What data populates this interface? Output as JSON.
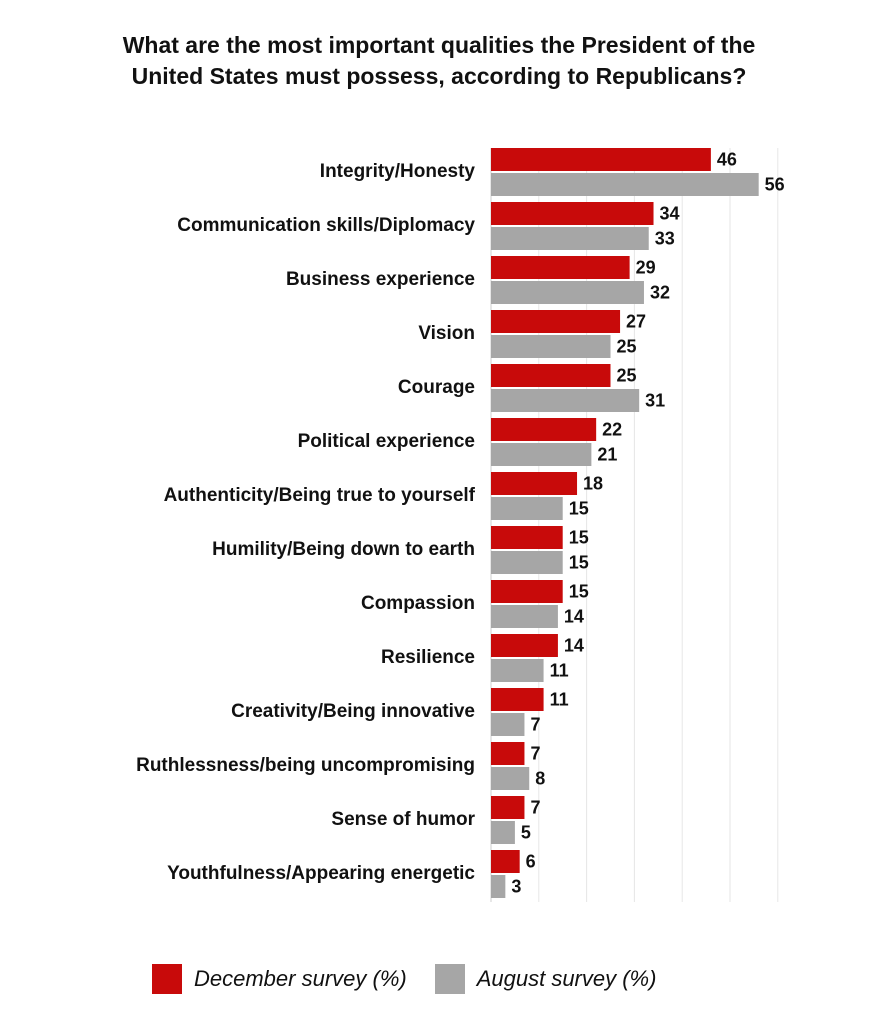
{
  "chart_data": {
    "type": "bar",
    "orientation": "horizontal",
    "title_lines": [
      "What are the most important qualities the President of the",
      "United States must possess, according to Republicans?"
    ],
    "categories": [
      "Integrity/Honesty",
      "Communication skills/Diplomacy",
      "Business experience",
      "Vision",
      "Courage",
      "Political experience",
      "Authenticity/Being true to yourself",
      "Humility/Being down to earth",
      "Compassion",
      "Resilience",
      "Creativity/Being innovative",
      "Ruthlessness/being uncompromising",
      "Sense of humor",
      "Youthfulness/Appearing energetic"
    ],
    "series": [
      {
        "name": "December survey (%)",
        "color": "#c80a0a",
        "values": [
          46,
          34,
          29,
          27,
          25,
          22,
          18,
          15,
          15,
          14,
          11,
          7,
          7,
          6
        ]
      },
      {
        "name": "August survey (%)",
        "color": "#a6a6a6",
        "values": [
          56,
          33,
          32,
          25,
          31,
          21,
          15,
          15,
          14,
          11,
          7,
          8,
          5,
          3
        ]
      }
    ],
    "xlim": [
      0,
      60
    ],
    "grid": true,
    "legend_position": "bottom"
  }
}
